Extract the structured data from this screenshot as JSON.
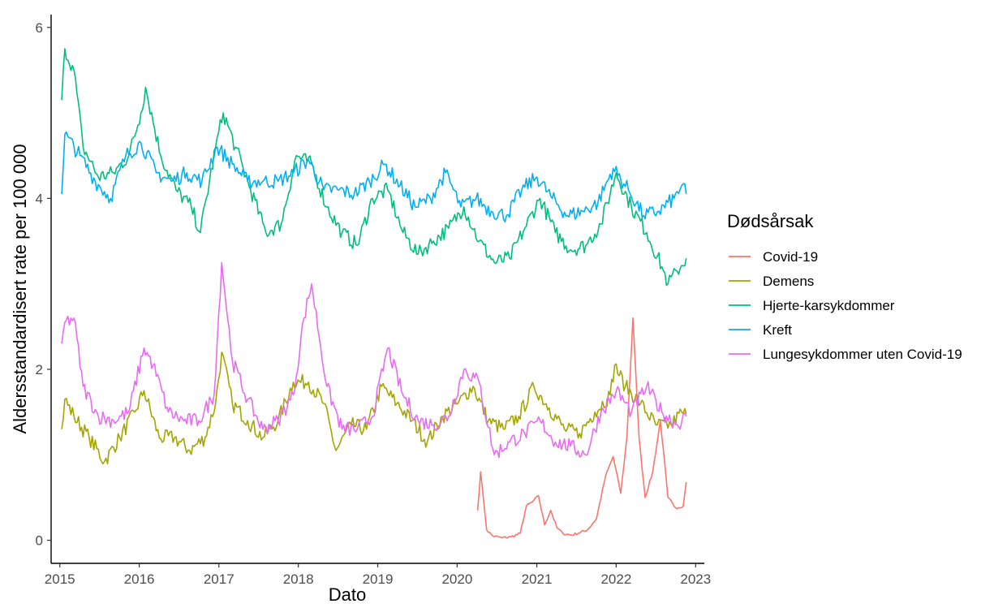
{
  "chart_data": {
    "type": "line",
    "xlabel": "Dato",
    "ylabel": "Aldersstandardisert rate per 100 000",
    "x_ticks": [
      "2015",
      "2016",
      "2017",
      "2018",
      "2019",
      "2020",
      "2021",
      "2022",
      "2023"
    ],
    "y_ticks": [
      "0",
      "2",
      "4",
      "6"
    ],
    "xlim": [
      "2014-11-22",
      "2023-02-10"
    ],
    "ylim": [
      -0.27,
      6.15
    ],
    "grid": false,
    "legend": {
      "title": "Dødsårsak",
      "position": "right"
    },
    "series": [
      {
        "name": "Covid-19",
        "color": "#F8766D",
        "points": [
          [
            "2020-04-04",
            0.35
          ],
          [
            "2020-04-18",
            0.8
          ],
          [
            "2020-05-02",
            0.45
          ],
          [
            "2020-05-16",
            0.12
          ],
          [
            "2020-06-13",
            0.05
          ],
          [
            "2020-07-25",
            0.03
          ],
          [
            "2020-09-05",
            0.04
          ],
          [
            "2020-10-17",
            0.08
          ],
          [
            "2020-11-14",
            0.4
          ],
          [
            "2020-12-12",
            0.45
          ],
          [
            "2021-01-09",
            0.52
          ],
          [
            "2021-02-06",
            0.18
          ],
          [
            "2021-03-06",
            0.35
          ],
          [
            "2021-04-03",
            0.15
          ],
          [
            "2021-05-01",
            0.08
          ],
          [
            "2021-06-12",
            0.06
          ],
          [
            "2021-08-21",
            0.12
          ],
          [
            "2021-10-02",
            0.25
          ],
          [
            "2021-11-13",
            0.75
          ],
          [
            "2021-12-18",
            0.98
          ],
          [
            "2022-01-22",
            0.55
          ],
          [
            "2022-02-19",
            1.2
          ],
          [
            "2022-03-19",
            2.6
          ],
          [
            "2022-04-16",
            1.2
          ],
          [
            "2022-05-14",
            0.5
          ],
          [
            "2022-06-18",
            0.8
          ],
          [
            "2022-07-23",
            1.4
          ],
          [
            "2022-08-27",
            0.5
          ],
          [
            "2022-10-01",
            0.38
          ],
          [
            "2022-11-05",
            0.4
          ],
          [
            "2022-11-19",
            0.68
          ]
        ]
      },
      {
        "name": "Demens",
        "color": "#A3A500",
        "points": [
          [
            "2015-01-10",
            1.3
          ],
          [
            "2015-01-24",
            1.65
          ],
          [
            "2015-03-07",
            1.45
          ],
          [
            "2015-05-16",
            1.2
          ],
          [
            "2015-07-25",
            0.92
          ],
          [
            "2015-10-03",
            1.2
          ],
          [
            "2015-12-12",
            1.5
          ],
          [
            "2016-01-23",
            1.75
          ],
          [
            "2016-04-02",
            1.2
          ],
          [
            "2016-06-11",
            1.2
          ],
          [
            "2016-08-20",
            1.05
          ],
          [
            "2016-10-29",
            1.2
          ],
          [
            "2016-12-17",
            1.6
          ],
          [
            "2017-01-14",
            2.2
          ],
          [
            "2017-03-04",
            1.6
          ],
          [
            "2017-05-13",
            1.4
          ],
          [
            "2017-07-22",
            1.2
          ],
          [
            "2017-09-30",
            1.4
          ],
          [
            "2017-12-09",
            1.85
          ],
          [
            "2018-02-17",
            1.85
          ],
          [
            "2018-04-28",
            1.6
          ],
          [
            "2018-06-23",
            1.05
          ],
          [
            "2018-09-01",
            1.35
          ],
          [
            "2018-11-10",
            1.3
          ],
          [
            "2019-01-19",
            1.8
          ],
          [
            "2019-03-30",
            1.6
          ],
          [
            "2019-06-08",
            1.4
          ],
          [
            "2019-08-17",
            1.15
          ],
          [
            "2019-10-26",
            1.45
          ],
          [
            "2020-01-04",
            1.6
          ],
          [
            "2020-03-14",
            1.8
          ],
          [
            "2020-05-23",
            1.4
          ],
          [
            "2020-08-01",
            1.3
          ],
          [
            "2020-10-10",
            1.45
          ],
          [
            "2020-12-19",
            1.8
          ],
          [
            "2021-02-27",
            1.55
          ],
          [
            "2021-05-08",
            1.3
          ],
          [
            "2021-07-17",
            1.25
          ],
          [
            "2021-09-25",
            1.5
          ],
          [
            "2021-12-04",
            1.7
          ],
          [
            "2021-12-25",
            2.05
          ],
          [
            "2022-02-12",
            1.8
          ],
          [
            "2022-04-23",
            1.6
          ],
          [
            "2022-07-02",
            1.35
          ],
          [
            "2022-09-10",
            1.35
          ],
          [
            "2022-10-29",
            1.5
          ],
          [
            "2022-11-19",
            1.48
          ]
        ]
      },
      {
        "name": "Hjerte-karsykdommer",
        "color": "#00BF7D",
        "points": [
          [
            "2015-01-10",
            5.15
          ],
          [
            "2015-01-24",
            5.75
          ],
          [
            "2015-03-07",
            5.5
          ],
          [
            "2015-04-18",
            4.6
          ],
          [
            "2015-06-27",
            4.25
          ],
          [
            "2015-09-05",
            4.3
          ],
          [
            "2015-11-14",
            4.5
          ],
          [
            "2016-01-09",
            5.0
          ],
          [
            "2016-01-30",
            5.3
          ],
          [
            "2016-04-09",
            4.5
          ],
          [
            "2016-06-18",
            4.1
          ],
          [
            "2016-08-27",
            3.9
          ],
          [
            "2016-10-08",
            3.6
          ],
          [
            "2016-12-17",
            4.6
          ],
          [
            "2017-01-21",
            5.0
          ],
          [
            "2017-03-18",
            4.6
          ],
          [
            "2017-05-27",
            4.1
          ],
          [
            "2017-08-05",
            3.6
          ],
          [
            "2017-10-14",
            3.7
          ],
          [
            "2017-12-23",
            4.5
          ],
          [
            "2018-03-03",
            4.4
          ],
          [
            "2018-05-12",
            3.9
          ],
          [
            "2018-07-21",
            3.6
          ],
          [
            "2018-09-29",
            3.45
          ],
          [
            "2018-12-08",
            4.0
          ],
          [
            "2019-02-16",
            4.1
          ],
          [
            "2019-04-27",
            3.6
          ],
          [
            "2019-07-06",
            3.35
          ],
          [
            "2019-09-14",
            3.5
          ],
          [
            "2019-11-23",
            3.65
          ],
          [
            "2020-02-01",
            3.9
          ],
          [
            "2020-04-11",
            3.5
          ],
          [
            "2020-06-20",
            3.25
          ],
          [
            "2020-08-29",
            3.3
          ],
          [
            "2020-11-07",
            3.65
          ],
          [
            "2021-01-16",
            4.0
          ],
          [
            "2021-03-27",
            3.6
          ],
          [
            "2021-06-05",
            3.4
          ],
          [
            "2021-08-14",
            3.45
          ],
          [
            "2021-10-23",
            3.7
          ],
          [
            "2022-01-01",
            4.3
          ],
          [
            "2022-03-12",
            3.9
          ],
          [
            "2022-05-21",
            3.6
          ],
          [
            "2022-07-30",
            3.2
          ],
          [
            "2022-08-27",
            3.0
          ],
          [
            "2022-10-08",
            3.15
          ],
          [
            "2022-11-19",
            3.3
          ]
        ]
      },
      {
        "name": "Kreft",
        "color": "#00B0F6",
        "points": [
          [
            "2015-01-10",
            4.05
          ],
          [
            "2015-01-24",
            4.75
          ],
          [
            "2015-04-04",
            4.5
          ],
          [
            "2015-06-13",
            4.2
          ],
          [
            "2015-08-22",
            4.0
          ],
          [
            "2015-10-31",
            4.5
          ],
          [
            "2016-01-09",
            4.65
          ],
          [
            "2016-03-19",
            4.3
          ],
          [
            "2016-05-28",
            4.2
          ],
          [
            "2016-08-06",
            4.3
          ],
          [
            "2016-10-15",
            4.2
          ],
          [
            "2016-12-24",
            4.6
          ],
          [
            "2017-03-04",
            4.4
          ],
          [
            "2017-05-13",
            4.2
          ],
          [
            "2017-07-22",
            4.2
          ],
          [
            "2017-09-30",
            4.2
          ],
          [
            "2017-12-09",
            4.3
          ],
          [
            "2018-02-17",
            4.45
          ],
          [
            "2018-04-28",
            4.1
          ],
          [
            "2018-07-07",
            4.1
          ],
          [
            "2018-09-15",
            4.05
          ],
          [
            "2018-11-24",
            4.2
          ],
          [
            "2019-02-02",
            4.4
          ],
          [
            "2019-04-13",
            4.15
          ],
          [
            "2019-06-22",
            3.9
          ],
          [
            "2019-08-31",
            4.0
          ],
          [
            "2019-11-09",
            4.3
          ],
          [
            "2020-01-18",
            3.9
          ],
          [
            "2020-03-28",
            4.0
          ],
          [
            "2020-06-06",
            3.85
          ],
          [
            "2020-08-15",
            3.8
          ],
          [
            "2020-10-24",
            4.1
          ],
          [
            "2021-01-02",
            4.25
          ],
          [
            "2021-03-13",
            4.0
          ],
          [
            "2021-05-22",
            3.8
          ],
          [
            "2021-07-31",
            3.85
          ],
          [
            "2021-10-09",
            3.95
          ],
          [
            "2021-12-18",
            4.35
          ],
          [
            "2022-02-26",
            4.1
          ],
          [
            "2022-05-07",
            3.8
          ],
          [
            "2022-07-16",
            3.85
          ],
          [
            "2022-09-24",
            4.0
          ],
          [
            "2022-10-29",
            4.15
          ],
          [
            "2022-11-19",
            4.05
          ]
        ]
      },
      {
        "name": "Lungesykdommer uten Covid-19",
        "color": "#E76BF3",
        "points": [
          [
            "2015-01-10",
            2.3
          ],
          [
            "2015-01-24",
            2.55
          ],
          [
            "2015-03-07",
            2.6
          ],
          [
            "2015-04-18",
            1.8
          ],
          [
            "2015-06-27",
            1.45
          ],
          [
            "2015-09-05",
            1.4
          ],
          [
            "2015-11-14",
            1.5
          ],
          [
            "2016-01-23",
            2.25
          ],
          [
            "2016-03-05",
            2.05
          ],
          [
            "2016-05-14",
            1.5
          ],
          [
            "2016-07-23",
            1.4
          ],
          [
            "2016-10-01",
            1.4
          ],
          [
            "2016-12-10",
            1.7
          ],
          [
            "2017-01-14",
            3.25
          ],
          [
            "2017-03-04",
            2.1
          ],
          [
            "2017-05-13",
            1.65
          ],
          [
            "2017-07-22",
            1.3
          ],
          [
            "2017-09-30",
            1.4
          ],
          [
            "2017-12-09",
            1.7
          ],
          [
            "2018-01-27",
            2.6
          ],
          [
            "2018-03-03",
            3.0
          ],
          [
            "2018-05-12",
            1.8
          ],
          [
            "2018-07-21",
            1.3
          ],
          [
            "2018-09-29",
            1.3
          ],
          [
            "2018-12-08",
            1.45
          ],
          [
            "2019-02-16",
            2.25
          ],
          [
            "2019-04-27",
            1.7
          ],
          [
            "2019-07-06",
            1.4
          ],
          [
            "2019-09-14",
            1.35
          ],
          [
            "2019-11-23",
            1.45
          ],
          [
            "2020-02-01",
            2.0
          ],
          [
            "2020-04-11",
            1.85
          ],
          [
            "2020-06-20",
            1.0
          ],
          [
            "2020-08-29",
            1.15
          ],
          [
            "2020-11-07",
            1.25
          ],
          [
            "2021-01-16",
            1.4
          ],
          [
            "2021-03-27",
            1.15
          ],
          [
            "2021-06-05",
            1.1
          ],
          [
            "2021-08-14",
            1.0
          ],
          [
            "2021-10-23",
            1.5
          ],
          [
            "2022-01-01",
            1.75
          ],
          [
            "2022-03-12",
            1.5
          ],
          [
            "2022-05-21",
            1.8
          ],
          [
            "2022-07-30",
            1.5
          ],
          [
            "2022-10-08",
            1.35
          ],
          [
            "2022-11-19",
            1.45
          ]
        ]
      }
    ]
  }
}
